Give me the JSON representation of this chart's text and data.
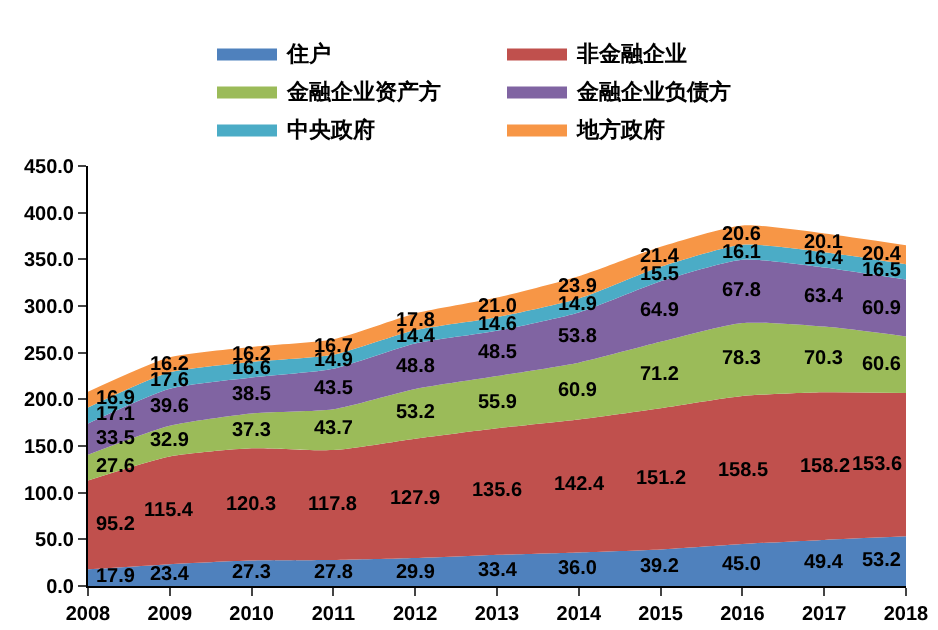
{
  "chart_data": {
    "type": "area",
    "stacked": true,
    "legend": "top",
    "grid": false,
    "x": [
      2008,
      2009,
      2010,
      2011,
      2012,
      2013,
      2014,
      2015,
      2016,
      2017,
      2018
    ],
    "xlim": [
      2008,
      2018
    ],
    "xticks": [
      2008,
      2009,
      2010,
      2011,
      2012,
      2013,
      2014,
      2015,
      2016,
      2017,
      2018
    ],
    "ylim": [
      0,
      450
    ],
    "yticks": [
      {
        "value": 0,
        "label": "0.0"
      },
      {
        "value": 50,
        "label": "50.0"
      },
      {
        "value": 100,
        "label": "100.0"
      },
      {
        "value": 150,
        "label": "150.0"
      },
      {
        "value": 200,
        "label": "200.0"
      },
      {
        "value": 250,
        "label": "250.0"
      },
      {
        "value": 300,
        "label": "300.0"
      },
      {
        "value": 350,
        "label": "350.0"
      },
      {
        "value": 400,
        "label": "400.0"
      },
      {
        "value": 450,
        "label": "450.0"
      }
    ],
    "series": [
      {
        "name": "住户",
        "color": "#4f81bd",
        "values": [
          17.9,
          23.4,
          27.3,
          27.8,
          29.9,
          33.4,
          36.0,
          39.2,
          45.0,
          49.4,
          53.2
        ],
        "value_labels": [
          "17.9",
          "23.4",
          "27.3",
          "27.8",
          "29.9",
          "33.4",
          "36.0",
          "39.2",
          "45.0",
          "49.4",
          "53.2"
        ]
      },
      {
        "name": "非金融企业",
        "color": "#c0504d",
        "values": [
          95.2,
          115.4,
          120.3,
          117.8,
          127.9,
          135.6,
          142.4,
          151.2,
          158.5,
          158.2,
          153.6
        ],
        "value_labels": [
          "95.2",
          "115.4",
          "120.3",
          "117.8",
          "127.9",
          "135.6",
          "142.4",
          "151.2",
          "158.5",
          "158.2",
          "153.6"
        ]
      },
      {
        "name": "金融企业资产方",
        "color": "#9bbb59",
        "values": [
          27.6,
          32.9,
          37.3,
          43.7,
          53.2,
          55.9,
          60.9,
          71.2,
          78.3,
          70.3,
          60.6
        ],
        "value_labels": [
          "27.6",
          "32.9",
          "37.3",
          "43.7",
          "53.2",
          "55.9",
          "60.9",
          "71.2",
          "78.3",
          "70.3",
          "60.6"
        ]
      },
      {
        "name": "金融企业负债方",
        "color": "#8064a2",
        "values": [
          33.5,
          39.6,
          38.5,
          43.5,
          48.8,
          48.5,
          53.8,
          64.9,
          67.8,
          63.4,
          60.9
        ],
        "value_labels": [
          "33.5",
          "39.6",
          "38.5",
          "43.5",
          "48.8",
          "48.5",
          "53.8",
          "64.9",
          "67.8",
          "63.4",
          "60.9"
        ]
      },
      {
        "name": "中央政府",
        "color": "#4bacc6",
        "values": [
          17.1,
          17.6,
          16.6,
          14.9,
          14.4,
          14.6,
          14.9,
          15.5,
          16.1,
          16.4,
          16.5
        ],
        "value_labels": [
          "17.1",
          "17.6",
          "16.6",
          "14.9",
          "14.4",
          "14.6",
          "14.9",
          "15.5",
          "16.1",
          "16.4",
          "16.5"
        ]
      },
      {
        "name": "地方政府",
        "color": "#f79646",
        "values": [
          16.9,
          16.2,
          16.2,
          16.7,
          17.8,
          21.0,
          23.9,
          21.4,
          20.6,
          20.1,
          20.4
        ],
        "value_labels": [
          "16.9",
          "16.2",
          "16.2",
          "16.7",
          "17.8",
          "21.0",
          "23.9",
          "21.4",
          "20.6",
          "20.1",
          "20.4"
        ]
      }
    ]
  }
}
